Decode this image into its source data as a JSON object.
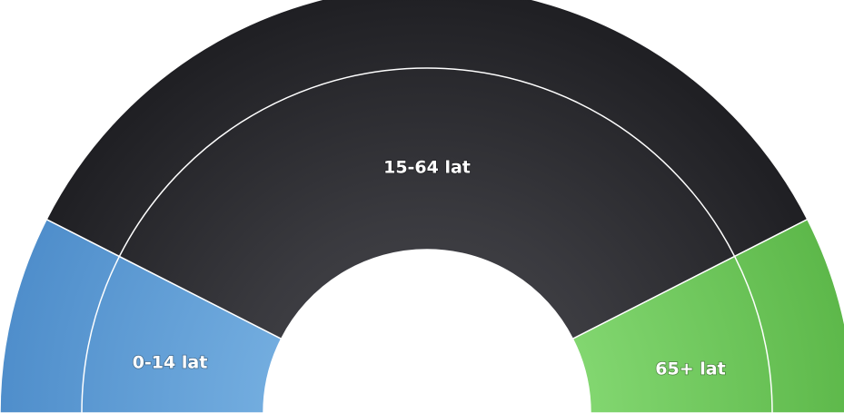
{
  "chart_data": {
    "type": "pie",
    "variant": "semi-donut",
    "title": "",
    "slices": [
      {
        "label": "0-14 lat",
        "value": 15,
        "color": "#5b9bd5"
      },
      {
        "label": "15-64 lat",
        "value": 70,
        "color": "#2e2e33"
      },
      {
        "label": "65+ lat",
        "value": 15,
        "color": "#6cc45a"
      }
    ],
    "legend": "none",
    "labels_on_slices": true
  }
}
